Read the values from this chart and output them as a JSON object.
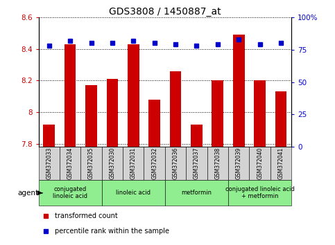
{
  "title": "GDS3808 / 1450887_at",
  "samples": [
    "GSM372033",
    "GSM372034",
    "GSM372035",
    "GSM372030",
    "GSM372031",
    "GSM372032",
    "GSM372036",
    "GSM372037",
    "GSM372038",
    "GSM372039",
    "GSM372040",
    "GSM372041"
  ],
  "bar_values": [
    7.92,
    8.43,
    8.17,
    8.21,
    8.43,
    8.08,
    8.26,
    7.92,
    8.2,
    8.49,
    8.2,
    8.13
  ],
  "percentile_values": [
    78,
    82,
    80,
    80,
    82,
    80,
    79,
    78,
    79,
    83,
    79,
    80
  ],
  "bar_color": "#cc0000",
  "dot_color": "#0000cc",
  "ylim_left": [
    7.78,
    8.6
  ],
  "ylim_right": [
    0,
    100
  ],
  "yticks_left": [
    7.8,
    8.0,
    8.2,
    8.4,
    8.6
  ],
  "yticks_right": [
    0,
    25,
    50,
    75,
    100
  ],
  "ytick_labels_right": [
    "0",
    "25",
    "50",
    "75",
    "100%"
  ],
  "agent_groups": [
    {
      "label": "conjugated\nlinoleic acid",
      "start": 0,
      "end": 3,
      "color": "#90ee90"
    },
    {
      "label": "linoleic acid",
      "start": 3,
      "end": 6,
      "color": "#90ee90"
    },
    {
      "label": "metformin",
      "start": 6,
      "end": 9,
      "color": "#90ee90"
    },
    {
      "label": "conjugated linoleic acid\n+ metformin",
      "start": 9,
      "end": 12,
      "color": "#90ee90"
    }
  ],
  "legend_items": [
    {
      "color": "#cc0000",
      "label": "transformed count"
    },
    {
      "color": "#0000cc",
      "label": "percentile rank within the sample"
    }
  ],
  "agent_label": "agent",
  "bg_color_sample": "#d3d3d3",
  "bg_color_plot": "#ffffff"
}
